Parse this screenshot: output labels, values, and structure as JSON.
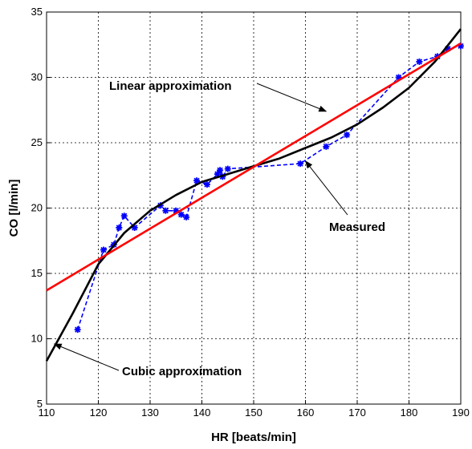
{
  "chart_data": {
    "type": "line",
    "title": "",
    "xlabel": "HR [beats/min]",
    "ylabel": "CO [l/min]",
    "xlim": [
      110,
      190
    ],
    "ylim": [
      5,
      35
    ],
    "xticks": [
      110,
      120,
      130,
      140,
      150,
      160,
      170,
      180,
      190
    ],
    "yticks": [
      5,
      10,
      15,
      20,
      25,
      30,
      35
    ],
    "grid": true,
    "series": [
      {
        "name": "Measured",
        "color": "#0000ff",
        "style": "dashed-markers",
        "x": [
          116,
          121,
          123,
          124,
          125,
          127,
          132,
          133,
          135,
          136,
          137,
          139,
          141,
          143,
          143.5,
          144,
          145,
          159,
          164,
          168,
          178,
          182,
          185.5,
          187.5,
          190
        ],
        "y": [
          10.7,
          16.8,
          17.2,
          18.5,
          19.4,
          18.5,
          20.2,
          19.8,
          19.8,
          19.5,
          19.3,
          22.1,
          21.8,
          22.6,
          22.9,
          22.4,
          23.0,
          23.4,
          24.7,
          25.6,
          30.0,
          31.2,
          31.6,
          32.2,
          32.4
        ]
      },
      {
        "name": "Linear approximation",
        "color": "#ff0000",
        "style": "solid",
        "x": [
          110,
          190
        ],
        "y": [
          13.7,
          32.6
        ]
      },
      {
        "name": "Cubic approximation",
        "color": "#000000",
        "style": "solid",
        "x": [
          110,
          115,
          120,
          125,
          130,
          135,
          140,
          145,
          150,
          155,
          160,
          165,
          170,
          175,
          180,
          185,
          190
        ],
        "y": [
          8.3,
          11.9,
          15.7,
          18.1,
          19.8,
          21.0,
          22.0,
          22.6,
          23.2,
          23.8,
          24.6,
          25.4,
          26.4,
          27.7,
          29.2,
          31.2,
          33.7
        ]
      }
    ],
    "annotations": [
      {
        "text": "Linear approximation",
        "target_x": 164,
        "target_y": 27.4
      },
      {
        "text": "Measured",
        "target_x": 160,
        "target_y": 23.6
      },
      {
        "text": "Cubic approximation",
        "target_x": 111.5,
        "target_y": 9.6
      }
    ]
  }
}
